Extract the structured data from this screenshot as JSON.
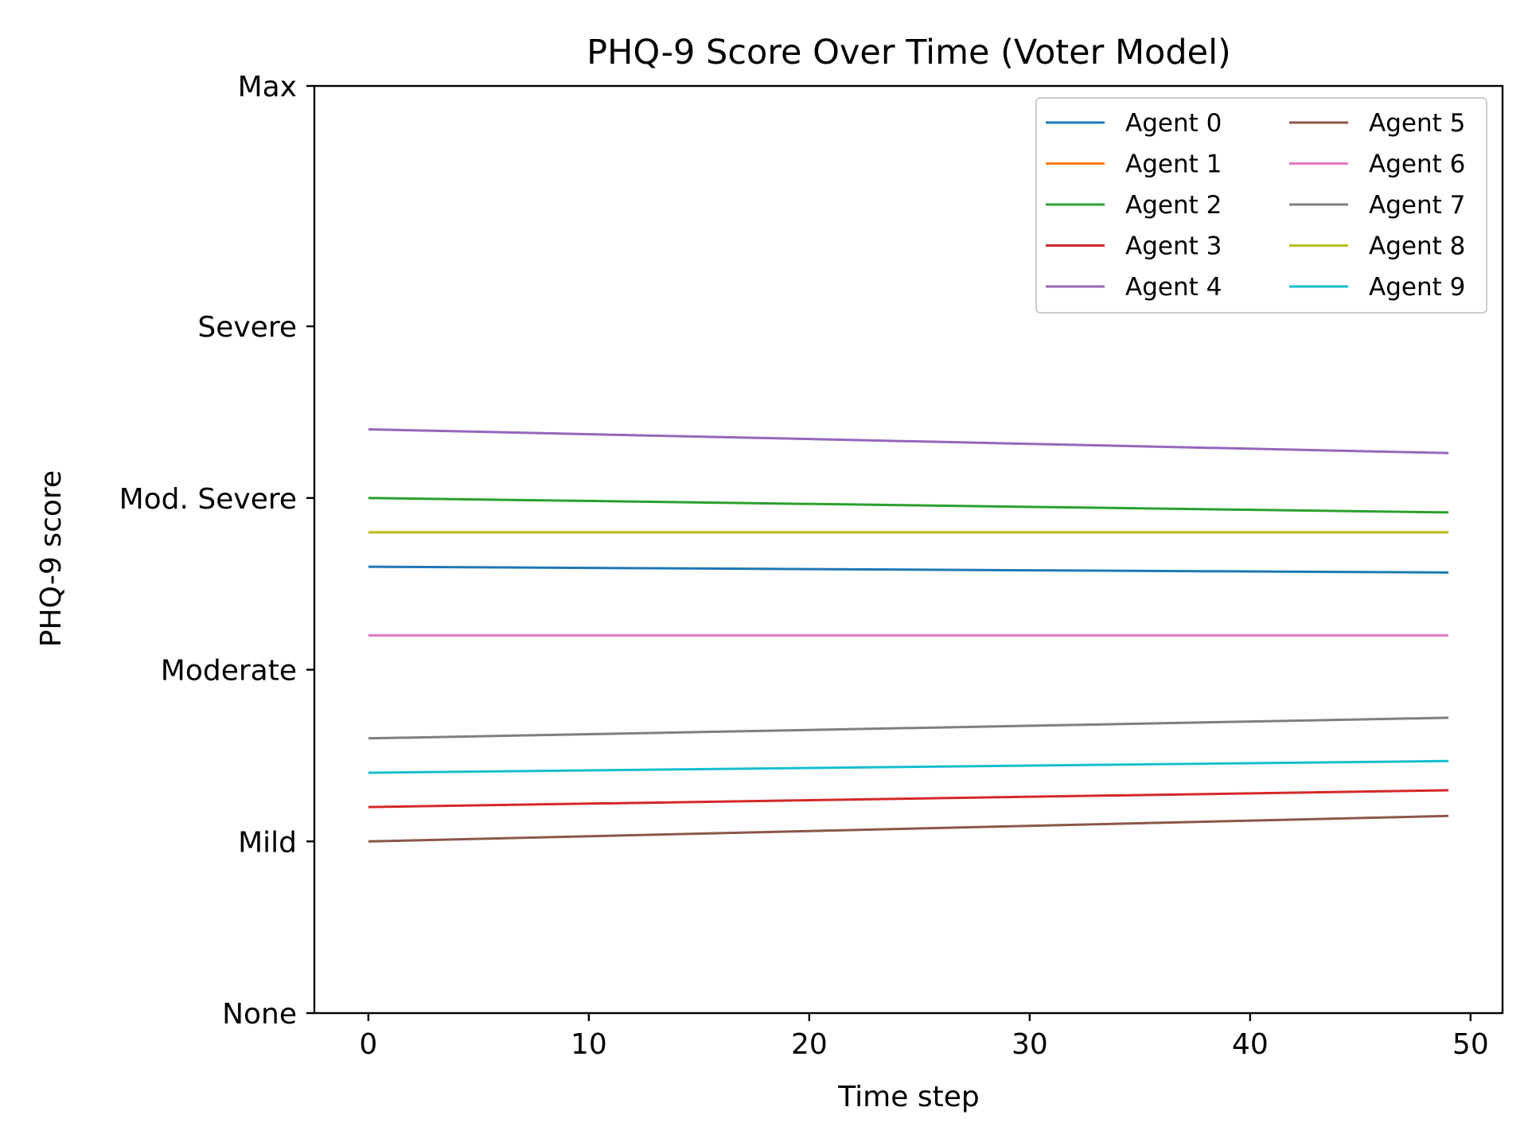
{
  "chart_data": {
    "type": "line",
    "title": "PHQ-9 Score Over Time (Voter Model)",
    "xlabel": "Time step",
    "ylabel": "PHQ-9 score",
    "xlim": [
      -2.45,
      51.45
    ],
    "ylim": [
      0,
      27
    ],
    "x_ticks": [
      0,
      10,
      20,
      30,
      40,
      50
    ],
    "y_ticks": [
      {
        "value": 0,
        "label": "None"
      },
      {
        "value": 5,
        "label": "Mild"
      },
      {
        "value": 10,
        "label": "Moderate"
      },
      {
        "value": 15,
        "label": "Mod. Severe"
      },
      {
        "value": 20,
        "label": "Severe"
      },
      {
        "value": 27,
        "label": "Max"
      }
    ],
    "grid": false,
    "legend": {
      "position": "top-right",
      "columns": 2
    },
    "x": [
      0,
      49
    ],
    "series": [
      {
        "name": "Agent 0",
        "color": "#1f77b4",
        "values": [
          13.0,
          12.83
        ]
      },
      {
        "name": "Agent 1",
        "color": "#ff7f0e",
        "values": [
          14.0,
          14.0
        ]
      },
      {
        "name": "Agent 2",
        "color": "#2ca02c",
        "values": [
          15.0,
          14.58
        ]
      },
      {
        "name": "Agent 3",
        "color": "#d62728",
        "values": [
          6.0,
          6.49
        ]
      },
      {
        "name": "Agent 4",
        "color": "#9467bd",
        "values": [
          17.0,
          16.31
        ]
      },
      {
        "name": "Agent 5",
        "color": "#8c564b",
        "values": [
          5.0,
          5.74
        ]
      },
      {
        "name": "Agent 6",
        "color": "#e377c2",
        "values": [
          11.0,
          11.0
        ]
      },
      {
        "name": "Agent 7",
        "color": "#7f7f7f",
        "values": [
          8.0,
          8.6
        ]
      },
      {
        "name": "Agent 8",
        "color": "#bcbd22",
        "values": [
          14.0,
          14.0
        ]
      },
      {
        "name": "Agent 9",
        "color": "#17becf",
        "values": [
          7.0,
          7.34
        ]
      }
    ]
  }
}
